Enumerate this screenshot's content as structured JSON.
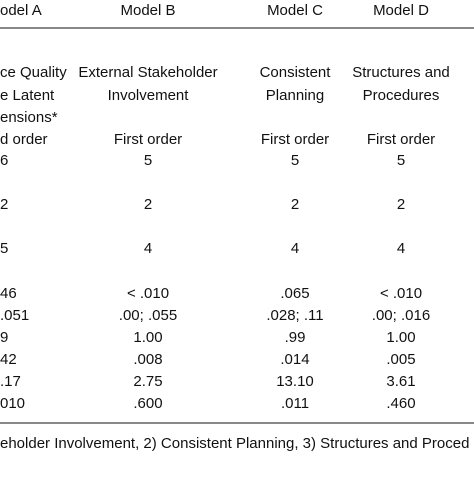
{
  "table": {
    "header": [
      "odel A",
      "Model B",
      "Model C",
      "Model D"
    ],
    "rows": [
      [
        "ce Quality",
        "External Stakeholder",
        "Consistent",
        "Structures and"
      ],
      [
        "e Latent",
        "Involvement",
        "Planning",
        "Procedures"
      ],
      [
        "ensions*",
        "",
        "",
        ""
      ],
      [
        "d order",
        "First order",
        "First order",
        "First order"
      ],
      [
        "6",
        "5",
        "5",
        "5"
      ],
      [
        "2",
        "2",
        "2",
        "2"
      ],
      [
        "5",
        "4",
        "4",
        "4"
      ],
      [
        "46",
        "< .010",
        ".065",
        "< .010"
      ],
      [
        ".051",
        ".00; .055",
        ".028; .11",
        ".00; .016"
      ],
      [
        "9",
        "1.00",
        ".99",
        "1.00"
      ],
      [
        "42",
        ".008",
        ".014",
        ".005"
      ],
      [
        ".17",
        "2.75",
        "13.10",
        "3.61"
      ],
      [
        "010",
        ".600",
        ".011",
        ".460"
      ]
    ],
    "footnote": "eholder Involvement, 2) Consistent Planning, 3) Structures and Proced"
  }
}
